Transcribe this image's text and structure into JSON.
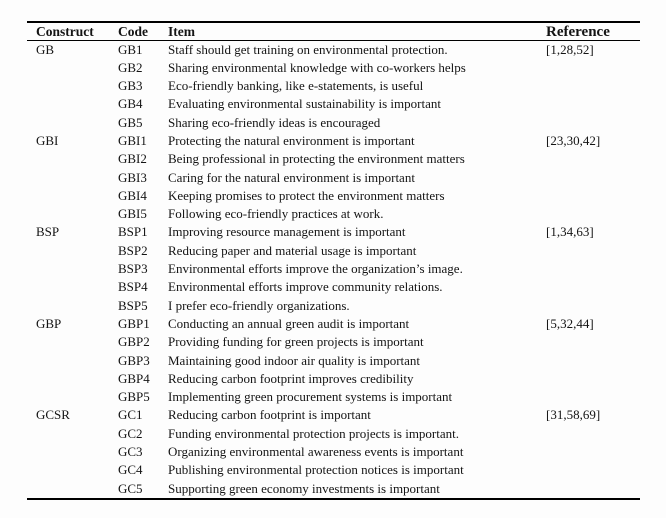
{
  "table": {
    "headers": {
      "construct": "Construct",
      "code": "Code",
      "item": "Item",
      "reference": "Reference"
    },
    "groups": [
      {
        "construct": "GB",
        "reference": "[1,28,52]",
        "rows": [
          {
            "code": "GB1",
            "item": "Staff should get training on environmental protection."
          },
          {
            "code": "GB2",
            "item": "Sharing environmental knowledge with co-workers helps"
          },
          {
            "code": "GB3",
            "item": "Eco-friendly banking, like e-statements, is useful"
          },
          {
            "code": "GB4",
            "item": "Evaluating environmental sustainability is important"
          },
          {
            "code": "GB5",
            "item": "Sharing eco-friendly ideas is encouraged"
          }
        ]
      },
      {
        "construct": "GBI",
        "reference": "[23,30,42]",
        "rows": [
          {
            "code": "GBI1",
            "item": "Protecting the natural environment is important"
          },
          {
            "code": "GBI2",
            "item": "Being professional in protecting the environment matters"
          },
          {
            "code": "GBI3",
            "item": "Caring for the natural environment is important"
          },
          {
            "code": "GBI4",
            "item": "Keeping promises to protect the environment matters"
          },
          {
            "code": "GBI5",
            "item": "Following eco-friendly practices at work."
          }
        ]
      },
      {
        "construct": "BSP",
        "reference": "[1,34,63]",
        "rows": [
          {
            "code": "BSP1",
            "item": "Improving resource management is important"
          },
          {
            "code": "BSP2",
            "item": "Reducing paper and material usage is important"
          },
          {
            "code": "BSP3",
            "item": "Environmental efforts improve the organization’s image."
          },
          {
            "code": "BSP4",
            "item": "Environmental efforts improve community relations."
          },
          {
            "code": "BSP5",
            "item": "I prefer eco-friendly organizations."
          }
        ]
      },
      {
        "construct": "GBP",
        "reference": "[5,32,44]",
        "rows": [
          {
            "code": "GBP1",
            "item": "Conducting an annual green audit is important"
          },
          {
            "code": "GBP2",
            "item": "Providing funding for green projects is important"
          },
          {
            "code": "GBP3",
            "item": "Maintaining good indoor air quality is important"
          },
          {
            "code": "GBP4",
            "item": "Reducing carbon footprint improves credibility"
          },
          {
            "code": "GBP5",
            "item": "Implementing green procurement systems is important"
          }
        ]
      },
      {
        "construct": "GCSR",
        "reference": "[31,58,69]",
        "rows": [
          {
            "code": "GC1",
            "item": "Reducing carbon footprint is important"
          },
          {
            "code": "GC2",
            "item": "Funding environmental protection projects is important."
          },
          {
            "code": "GC3",
            "item": "Organizing environmental awareness events is important"
          },
          {
            "code": "GC4",
            "item": "Publishing environmental protection notices is important"
          },
          {
            "code": "GC5",
            "item": "Supporting green economy investments is important"
          }
        ]
      }
    ],
    "colors": {
      "text": "#141414",
      "rule": "#000000",
      "background": "#fdfdfd"
    }
  }
}
